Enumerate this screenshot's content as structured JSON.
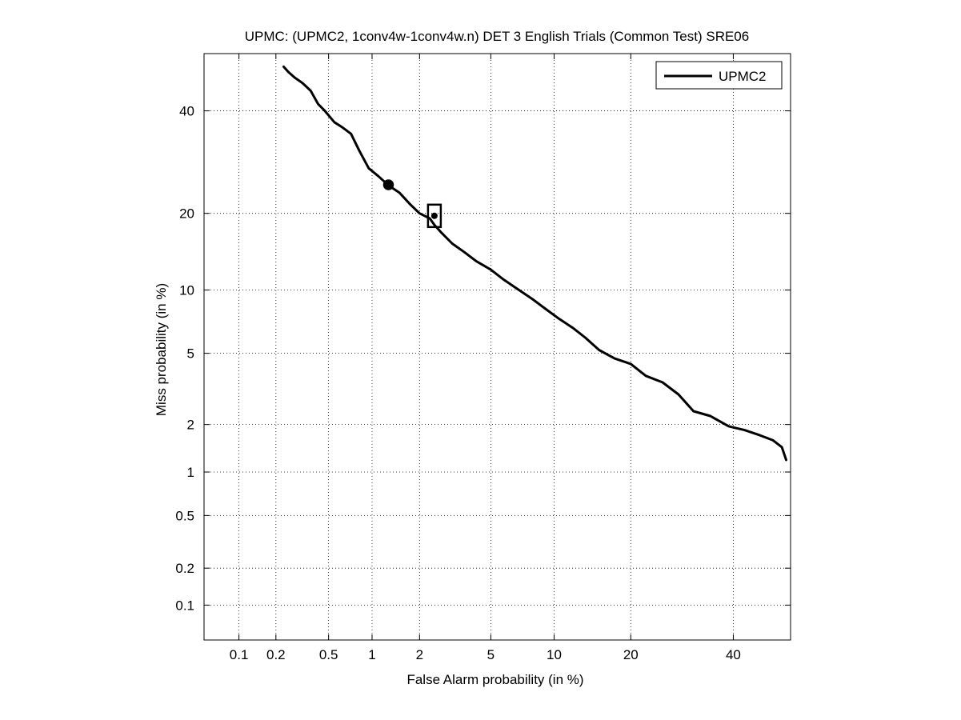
{
  "chart_data": {
    "type": "line",
    "title": "UPMC: (UPMC2, 1conv4w-1conv4w.n) DET 3 English Trials (Common Test) SRE06",
    "xlabel": "False Alarm probability (in %)",
    "ylabel": "Miss probability (in %)",
    "scale": "normal-deviate (probit) on both axes",
    "xlim": [
      0.05,
      53
    ],
    "ylim": [
      0.05,
      53
    ],
    "xticks": [
      0.1,
      0.2,
      0.5,
      1,
      2,
      5,
      10,
      20,
      40
    ],
    "xtick_labels": [
      "0.1",
      "0.2",
      "0.5",
      "1",
      "2",
      "5",
      "10",
      "20",
      "40"
    ],
    "yticks": [
      0.1,
      0.2,
      0.5,
      1,
      2,
      5,
      10,
      20,
      40
    ],
    "ytick_labels": [
      "0.1",
      "0.2",
      "0.5",
      "1",
      "2",
      "5",
      "10",
      "20",
      "40"
    ],
    "grid": true,
    "legend_position": "top-right",
    "series": [
      {
        "name": "UPMC2",
        "color": "#000000",
        "x": [
          0.23,
          0.25,
          0.28,
          0.32,
          0.37,
          0.42,
          0.47,
          0.55,
          0.62,
          0.72,
          0.82,
          0.95,
          1.1,
          1.28,
          1.5,
          1.75,
          2.0,
          2.3,
          2.45,
          2.7,
          3.1,
          3.6,
          4.2,
          5.0,
          5.8,
          6.9,
          8.0,
          9.2,
          10.5,
          12.0,
          13.5,
          15.3,
          17.5,
          20.0,
          22.5,
          25.5,
          28.5,
          31.5,
          35.0,
          39.0,
          42.5,
          46.0,
          49.0,
          51.0,
          52.0
        ],
        "y": [
          50.0,
          48.8,
          47.5,
          46.3,
          44.5,
          41.5,
          40.0,
          37.5,
          36.5,
          35.0,
          31.5,
          28.0,
          26.5,
          24.8,
          23.5,
          21.5,
          20.0,
          19.2,
          18.2,
          17.0,
          15.5,
          14.4,
          13.2,
          12.2,
          11.1,
          10.0,
          9.1,
          8.2,
          7.4,
          6.7,
          6.0,
          5.2,
          4.7,
          4.4,
          3.8,
          3.5,
          3.0,
          2.4,
          2.25,
          1.95,
          1.85,
          1.72,
          1.6,
          1.45,
          1.2
        ]
      }
    ],
    "markers": [
      {
        "shape": "circle",
        "x": 1.28,
        "y": 24.9
      },
      {
        "shape": "square",
        "x": 2.45,
        "y": 19.6
      }
    ]
  }
}
